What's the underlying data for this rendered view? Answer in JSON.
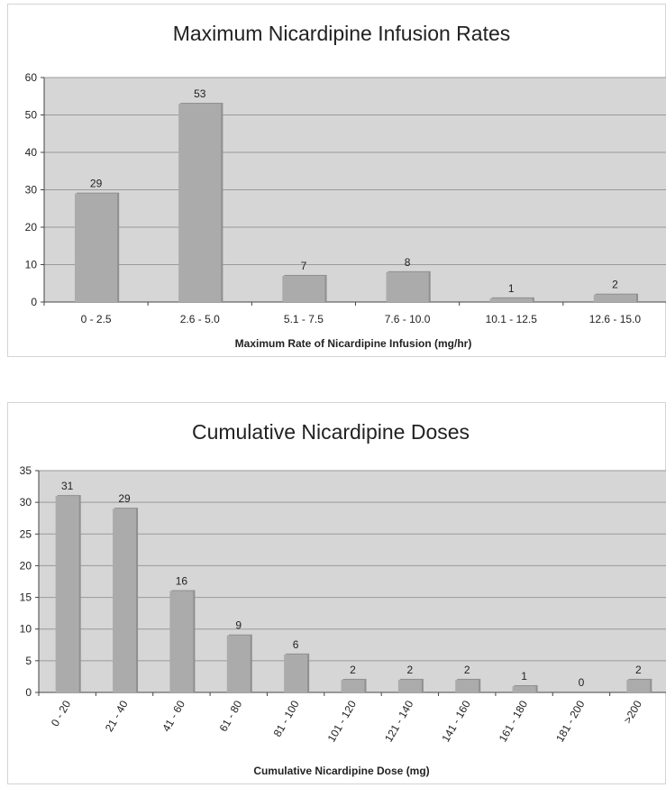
{
  "chart_data": [
    {
      "type": "bar",
      "title": "Maximum Nicardipine Infusion Rates",
      "xlabel": "Maximum Rate of Nicardipine Infusion (mg/hr)",
      "ylabel": "",
      "categories": [
        "0 - 2.5",
        "2.6 - 5.0",
        "5.1 - 7.5",
        "7.6 - 10.0",
        "10.1 - 12.5",
        "12.6 - 15.0"
      ],
      "values": [
        29,
        53,
        7,
        8,
        1,
        2
      ],
      "ylim": [
        0,
        60
      ],
      "yticks": [
        0,
        10,
        20,
        30,
        40,
        50,
        60
      ],
      "grid": true,
      "legend": "none",
      "colors": {
        "bar": "#ababab",
        "plot_bg": "#d6d6d6",
        "grid": "#9a9a9a"
      }
    },
    {
      "type": "bar",
      "title": "Cumulative Nicardipine Doses",
      "xlabel": "Cumulative Nicardipine Dose (mg)",
      "ylabel": "",
      "categories": [
        "0 - 20",
        "21 - 40",
        "41 - 60",
        "61 - 80",
        "81 - 100",
        "101 - 120",
        "121 - 140",
        "141 - 160",
        "161 - 180",
        "181 - 200",
        ">200"
      ],
      "values": [
        31,
        29,
        16,
        9,
        6,
        2,
        2,
        2,
        1,
        0,
        2
      ],
      "ylim": [
        0,
        35
      ],
      "yticks": [
        0,
        5,
        10,
        15,
        20,
        25,
        30,
        35
      ],
      "grid": true,
      "legend": "none",
      "x_tick_rotation": "-60deg",
      "colors": {
        "bar": "#ababab",
        "plot_bg": "#d6d6d6",
        "grid": "#9a9a9a"
      }
    }
  ]
}
